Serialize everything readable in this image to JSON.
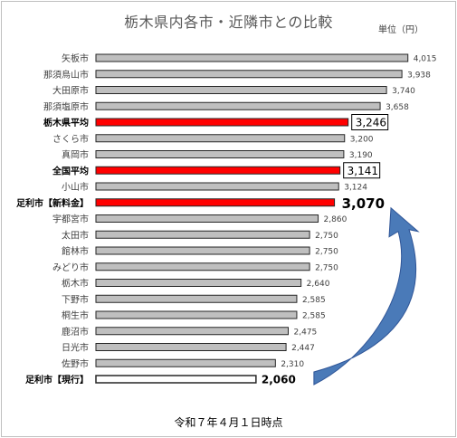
{
  "title": "栃木県内各市・近隣市との比較",
  "unit_label": "単位（円）",
  "footer_note": "令和７年４月１日時点",
  "colors": {
    "bar_normal": "#bfbfbf",
    "bar_highlight": "#ff0000",
    "bar_outline": "#262626",
    "bar_current_fill": "#ffffff",
    "arrow": "#4a7ab8"
  },
  "chart_data": {
    "type": "bar",
    "orientation": "horizontal",
    "title": "栃木県内各市・近隣市との比較",
    "xlabel": "",
    "ylabel": "",
    "xlim": [
      0,
      4300
    ],
    "grid": false,
    "categories": [
      "矢板市",
      "那須烏山市",
      "大田原市",
      "那須塩原市",
      "栃木県平均",
      "さくら市",
      "真岡市",
      "全国平均",
      "小山市",
      "足利市【新料金】",
      "宇都宮市",
      "太田市",
      "館林市",
      "みどり市",
      "栃木市",
      "下野市",
      "桐生市",
      "鹿沼市",
      "日光市",
      "佐野市",
      "足利市【現行】"
    ],
    "values": [
      4015,
      3938,
      3740,
      3658,
      3246,
      3200,
      3190,
      3141,
      3124,
      3070,
      2860,
      2750,
      2750,
      2750,
      2640,
      2585,
      2585,
      2475,
      2447,
      2310,
      2060
    ],
    "value_labels": [
      "4,015",
      "3,938",
      "3,740",
      "3,658",
      "3,246",
      "3,200",
      "3,190",
      "3,141",
      "3,124",
      "3,070",
      "2,860",
      "2,750",
      "2,750",
      "2,750",
      "2,640",
      "2,585",
      "2,585",
      "2,475",
      "2,447",
      "2,310",
      "2,060"
    ],
    "styles": [
      "normal",
      "normal",
      "normal",
      "normal",
      "highlight",
      "normal",
      "normal",
      "highlight",
      "normal",
      "highlight",
      "normal",
      "normal",
      "normal",
      "normal",
      "normal",
      "normal",
      "normal",
      "normal",
      "normal",
      "normal",
      "current"
    ],
    "bold_labels": [
      4,
      7,
      9,
      20
    ],
    "boxed_value_labels": [
      4,
      7
    ],
    "large_value_label": 9
  }
}
